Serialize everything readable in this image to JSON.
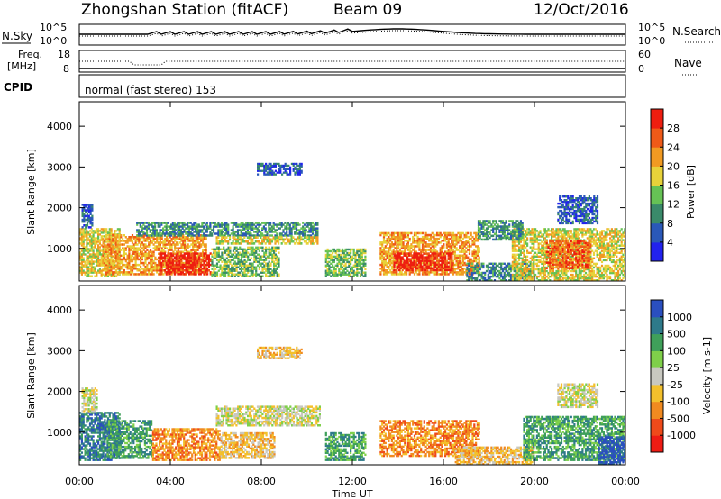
{
  "header": {
    "station": "Zhongshan Station (fitACF)",
    "beam": "Beam 09",
    "date": "12/Oct/2016"
  },
  "strip_panels": {
    "nsky_label": "N.Sky",
    "nsearch_label": "N.Search",
    "freq_label_line1": "Freq.",
    "freq_label_line2": "[MHz]",
    "nave_label": "Nave",
    "cpid_label": "CPID",
    "cpid_text": "normal (fast stereo) 153",
    "noise_left_top": "10^5",
    "noise_left_bottom": "10^0",
    "noise_right_top": "10^5",
    "noise_right_bottom": "10^0",
    "freq_left_top": "18",
    "freq_left_bottom": "8",
    "nave_right_top": "60",
    "nave_right_bottom": "0"
  },
  "x_axis": {
    "label": "Time UT",
    "ticks": [
      "00:00",
      "04:00",
      "08:00",
      "12:00",
      "16:00",
      "20:00",
      "00:00"
    ]
  },
  "chart_data": [
    {
      "type": "heatmap",
      "name_text": "Power panel",
      "ylabel": "Slant Range [km]",
      "yticks": [
        "1000",
        "2000",
        "3000",
        "4000"
      ],
      "ylim": [
        200,
        4600
      ],
      "xlim_hours": [
        0,
        24
      ],
      "colorbar_label": "Power [dB]",
      "colorbar_ticks": [
        "4",
        "8",
        "12",
        "16",
        "20",
        "24",
        "28"
      ],
      "colorbar_range": [
        0,
        32
      ],
      "colors": [
        "#2222ee",
        "#2a58b8",
        "#3a8a6a",
        "#66c255",
        "#e8d23a",
        "#f19a22",
        "#ef5a18",
        "#ee1e10"
      ],
      "regions": [
        {
          "t0": 0.0,
          "t1": 1.8,
          "r0": 300,
          "r1": 1500,
          "level": 4
        },
        {
          "t0": 0.1,
          "t1": 0.6,
          "r0": 1500,
          "r1": 2100,
          "level": 1
        },
        {
          "t0": 1.0,
          "t1": 5.6,
          "r0": 350,
          "r1": 1350,
          "level": 5
        },
        {
          "t0": 3.5,
          "t1": 5.8,
          "r0": 350,
          "r1": 900,
          "level": 7
        },
        {
          "t0": 2.5,
          "t1": 10.5,
          "r0": 1300,
          "r1": 1650,
          "level": 2
        },
        {
          "t0": 6.0,
          "t1": 10.5,
          "r0": 1100,
          "r1": 1300,
          "level": 4
        },
        {
          "t0": 5.8,
          "t1": 8.8,
          "r0": 300,
          "r1": 1050,
          "level": 3
        },
        {
          "t0": 7.8,
          "t1": 9.8,
          "r0": 2800,
          "r1": 3100,
          "level": 1
        },
        {
          "t0": 10.8,
          "t1": 12.6,
          "r0": 300,
          "r1": 1000,
          "level": 3
        },
        {
          "t0": 13.2,
          "t1": 17.6,
          "r0": 350,
          "r1": 1400,
          "level": 5
        },
        {
          "t0": 13.8,
          "t1": 16.4,
          "r0": 450,
          "r1": 900,
          "level": 7
        },
        {
          "t0": 17.0,
          "t1": 20.0,
          "r0": 200,
          "r1": 650,
          "level": 2
        },
        {
          "t0": 19.0,
          "t1": 24.0,
          "r0": 200,
          "r1": 1500,
          "level": 4
        },
        {
          "t0": 20.5,
          "t1": 22.5,
          "r0": 500,
          "r1": 1200,
          "level": 6
        },
        {
          "t0": 17.5,
          "t1": 19.5,
          "r0": 1200,
          "r1": 1700,
          "level": 2
        },
        {
          "t0": 21.0,
          "t1": 22.8,
          "r0": 1600,
          "r1": 2300,
          "level": 1
        }
      ]
    },
    {
      "type": "heatmap",
      "name_text": "Velocity panel",
      "ylabel": "Slant Range [km]",
      "yticks": [
        "1000",
        "2000",
        "3000",
        "4000"
      ],
      "ylim": [
        200,
        4600
      ],
      "xlim_hours": [
        0,
        24
      ],
      "colorbar_label": "Velocity [m s-1]",
      "colorbar_ticks": [
        "1000",
        "500",
        "100",
        "25",
        "-25",
        "-100",
        "-500",
        "-1000"
      ],
      "colorbar_range": [
        -1250,
        1250
      ],
      "colors": [
        "#ee1c14",
        "#ef4a1a",
        "#f18a20",
        "#f3c02c",
        "#c8c8c0",
        "#7fd04a",
        "#3fa05a",
        "#2e7a8a",
        "#2a4fbf"
      ],
      "regions": [
        {
          "t0": 0.0,
          "t1": 1.8,
          "r0": 300,
          "r1": 1500,
          "level": 7
        },
        {
          "t0": 0.1,
          "t1": 0.8,
          "r0": 1500,
          "r1": 2100,
          "level": 4
        },
        {
          "t0": 1.2,
          "t1": 3.2,
          "r0": 350,
          "r1": 1300,
          "level": 6
        },
        {
          "t0": 3.2,
          "t1": 6.2,
          "r0": 300,
          "r1": 1100,
          "level": 2
        },
        {
          "t0": 6.0,
          "t1": 10.6,
          "r0": 1150,
          "r1": 1650,
          "level": 4
        },
        {
          "t0": 6.2,
          "t1": 8.6,
          "r0": 350,
          "r1": 1000,
          "level": 3
        },
        {
          "t0": 7.8,
          "t1": 9.8,
          "r0": 2800,
          "r1": 3100,
          "level": 3
        },
        {
          "t0": 10.8,
          "t1": 12.6,
          "r0": 300,
          "r1": 1000,
          "level": 6
        },
        {
          "t0": 13.2,
          "t1": 17.6,
          "r0": 400,
          "r1": 1300,
          "level": 2
        },
        {
          "t0": 16.5,
          "t1": 20.0,
          "r0": 200,
          "r1": 650,
          "level": 3
        },
        {
          "t0": 19.5,
          "t1": 24.0,
          "r0": 300,
          "r1": 1400,
          "level": 6
        },
        {
          "t0": 22.8,
          "t1": 24.0,
          "r0": 200,
          "r1": 900,
          "level": 8
        },
        {
          "t0": 21.0,
          "t1": 22.8,
          "r0": 1600,
          "r1": 2200,
          "level": 4
        }
      ]
    }
  ]
}
